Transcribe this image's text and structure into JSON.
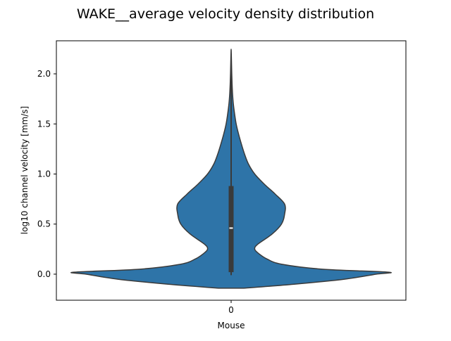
{
  "chart_data": {
    "type": "violin",
    "title": "WAKE__average velocity density distribution",
    "xlabel": "Mouse",
    "ylabel": "log10 channel velocity [mm/s]",
    "categories": [
      "0"
    ],
    "ylim": [
      -0.26,
      2.33
    ],
    "yticks": [
      0.0,
      0.5,
      1.0,
      1.5,
      2.0
    ],
    "ytick_labels": [
      "0.0",
      "0.5",
      "1.0",
      "1.5",
      "2.0"
    ],
    "grid": false,
    "violins": [
      {
        "category": "0",
        "color": "#2e74a8",
        "edge_color": "#3a3a3a",
        "range": [
          -0.14,
          2.23
        ],
        "box": {
          "q1": 0.02,
          "median": 0.46,
          "q3": 0.88
        },
        "whisker": [
          -0.01,
          2.16
        ],
        "relative_density": [
          [
            -0.14,
            0.08
          ],
          [
            -0.1,
            0.4
          ],
          [
            -0.05,
            0.72
          ],
          [
            0.0,
            0.92
          ],
          [
            0.02,
            1.0
          ],
          [
            0.05,
            0.58
          ],
          [
            0.1,
            0.32
          ],
          [
            0.15,
            0.23
          ],
          [
            0.2,
            0.18
          ],
          [
            0.25,
            0.15
          ],
          [
            0.3,
            0.17
          ],
          [
            0.4,
            0.26
          ],
          [
            0.5,
            0.32
          ],
          [
            0.6,
            0.34
          ],
          [
            0.7,
            0.34
          ],
          [
            0.8,
            0.28
          ],
          [
            0.9,
            0.21
          ],
          [
            1.0,
            0.15
          ],
          [
            1.1,
            0.11
          ],
          [
            1.2,
            0.085
          ],
          [
            1.3,
            0.065
          ],
          [
            1.4,
            0.047
          ],
          [
            1.5,
            0.032
          ],
          [
            1.6,
            0.022
          ],
          [
            1.7,
            0.014
          ],
          [
            1.8,
            0.009
          ],
          [
            1.9,
            0.006
          ],
          [
            2.0,
            0.004
          ],
          [
            2.1,
            0.0025
          ],
          [
            2.23,
            0.0005
          ]
        ]
      }
    ]
  }
}
